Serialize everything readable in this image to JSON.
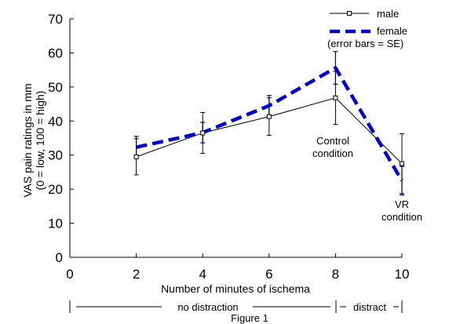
{
  "chart_data": {
    "type": "line",
    "title": "",
    "xlabel": "Number of minutes of ischema",
    "ylabel_line1": "VAS pain ratings in mm",
    "ylabel_line2": "(0 = low, 100 = high)",
    "xlim": [
      0,
      10
    ],
    "ylim": [
      0,
      70
    ],
    "x_ticks": [
      "0",
      "2",
      "4",
      "6",
      "8",
      "10"
    ],
    "y_ticks": [
      "0",
      "10",
      "20",
      "30",
      "40",
      "50",
      "60",
      "70"
    ],
    "grid": false,
    "legend_position": "top-right",
    "legend_note": "(error bars = SE)",
    "series": [
      {
        "name": "male",
        "color": "#000000",
        "style": "solid thin line with square markers",
        "x": [
          2,
          4,
          6,
          8,
          10
        ],
        "y": [
          29.5,
          36.5,
          41.3,
          46.8,
          27.5
        ],
        "se": [
          5.3,
          6.0,
          5.5,
          7.8,
          8.8
        ]
      },
      {
        "name": "female",
        "color": "#0000cc",
        "style": "thick dashed line",
        "x": [
          2,
          4,
          6,
          8,
          10
        ],
        "y": [
          32.3,
          36.6,
          44.5,
          55.6,
          22.5
        ],
        "se": [
          3.2,
          3.0,
          3.0,
          4.8,
          4.2
        ]
      }
    ],
    "annotations": [
      {
        "text_lines": [
          "Control",
          "condition"
        ],
        "x": 8
      },
      {
        "text_lines": [
          "VR",
          "condition"
        ],
        "x": 10
      }
    ],
    "segments": [
      {
        "label": "no distraction",
        "from_x": 0,
        "to_x": 8
      },
      {
        "label": "distract",
        "from_x": 8,
        "to_x": 10
      }
    ],
    "caption": "Figure 1"
  }
}
